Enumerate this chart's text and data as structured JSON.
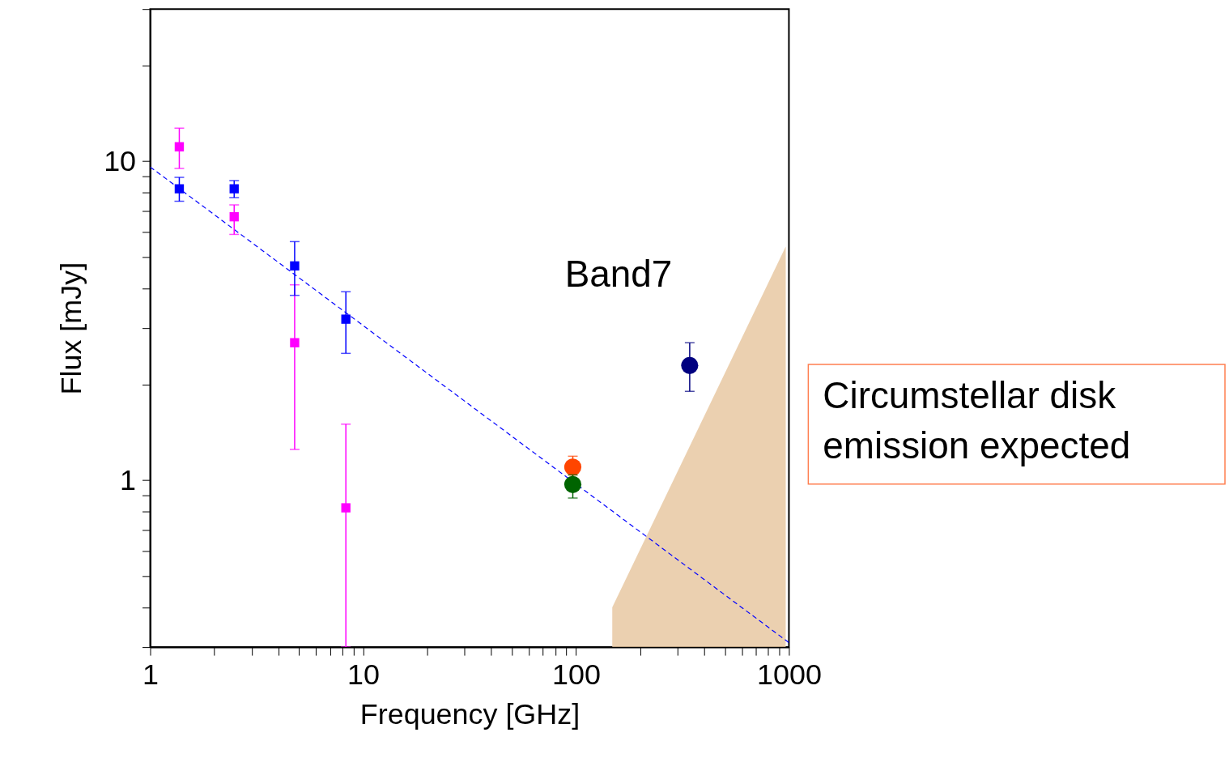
{
  "chart_data": {
    "type": "scatter",
    "xlabel": "Frequency [GHz]",
    "ylabel": "Flux [mJy]",
    "log": "xy",
    "grid": false,
    "xlim": [
      1,
      1000
    ],
    "ylim": [
      0.3,
      30
    ],
    "xticks": [
      1,
      {
        "value": 2,
        "label": null
      },
      {
        "value": 3,
        "label": null
      },
      {
        "value": 4,
        "label": null
      },
      {
        "value": 5,
        "label": null
      },
      {
        "value": 6,
        "label": null
      },
      {
        "value": 7,
        "label": null
      },
      {
        "value": 8,
        "label": null
      },
      {
        "value": 9,
        "label": null
      },
      10,
      {
        "value": 20,
        "label": null
      },
      {
        "value": 30,
        "label": null
      },
      {
        "value": 40,
        "label": null
      },
      {
        "value": 50,
        "label": null
      },
      {
        "value": 60,
        "label": null
      },
      {
        "value": 70,
        "label": null
      },
      {
        "value": 80,
        "label": null
      },
      {
        "value": 90,
        "label": null
      },
      100,
      {
        "value": 200,
        "label": null
      },
      {
        "value": 300,
        "label": null
      },
      {
        "value": 400,
        "label": null
      },
      {
        "value": 500,
        "label": null
      },
      {
        "value": 600,
        "label": null
      },
      {
        "value": 700,
        "label": null
      },
      {
        "value": 800,
        "label": null
      },
      {
        "value": 900,
        "label": null
      },
      1000
    ],
    "yticks": [
      {
        "value": 0.3,
        "label": null
      },
      {
        "value": 0.4,
        "label": null
      },
      {
        "value": 0.5,
        "label": null
      },
      {
        "value": 0.6,
        "label": null
      },
      {
        "value": 0.7,
        "label": null
      },
      {
        "value": 0.8,
        "label": null
      },
      {
        "value": 0.9,
        "label": null
      },
      1,
      {
        "value": 2,
        "label": null
      },
      {
        "value": 3,
        "label": null
      },
      {
        "value": 4,
        "label": null
      },
      {
        "value": 5,
        "label": null
      },
      {
        "value": 6,
        "label": null
      },
      {
        "value": 7,
        "label": null
      },
      {
        "value": 8,
        "label": null
      },
      {
        "value": 9,
        "label": null
      },
      10,
      {
        "value": 20,
        "label": null
      },
      {
        "value": 30,
        "label": null
      }
    ],
    "series": [
      {
        "type": "area",
        "color": "#e6c49c",
        "x": [
          148,
          966
        ],
        "values": [
          0.4,
          5.4
        ]
      },
      {
        "type": "line",
        "color": "#0000ff",
        "line_style": "dashed",
        "x": [
          1,
          1000
        ],
        "values": [
          9.6,
          0.31
        ]
      },
      {
        "color": "#ff00ff",
        "marker": "square",
        "x": [
          1.37,
          2.48,
          4.77,
          8.3
        ],
        "values": [
          11.1,
          6.7,
          2.7,
          0.82
        ],
        "errors": [
          [
            9.5,
            12.7
          ],
          [
            5.9,
            7.3
          ],
          [
            1.25,
            4.1
          ],
          [
            0.3,
            1.5
          ]
        ]
      },
      {
        "color": "#0000ff",
        "marker": "square",
        "x": [
          1.37,
          2.48,
          4.77,
          8.3
        ],
        "values": [
          8.2,
          8.2,
          4.7,
          3.2
        ],
        "errors": [
          [
            7.5,
            8.9
          ],
          [
            7.7,
            8.7
          ],
          [
            3.8,
            5.6
          ],
          [
            2.5,
            3.9
          ]
        ]
      },
      {
        "color": "#ff4500",
        "marker": "circle",
        "x": [
          96.6
        ],
        "values": [
          1.1
        ],
        "errors": [
          [
            1.04,
            1.19
          ]
        ]
      },
      {
        "color": "#006400",
        "marker": "circle",
        "x": [
          96.6
        ],
        "values": [
          0.97
        ],
        "errors": [
          [
            0.88,
            1.04
          ]
        ]
      },
      {
        "color": "#000080",
        "marker": "circle",
        "x": [
          342
        ],
        "values": [
          2.29
        ],
        "errors": [
          [
            1.9,
            2.7
          ]
        ]
      }
    ],
    "annotations": [
      "Band7",
      "Circumstellar disk\nemission expected"
    ]
  }
}
